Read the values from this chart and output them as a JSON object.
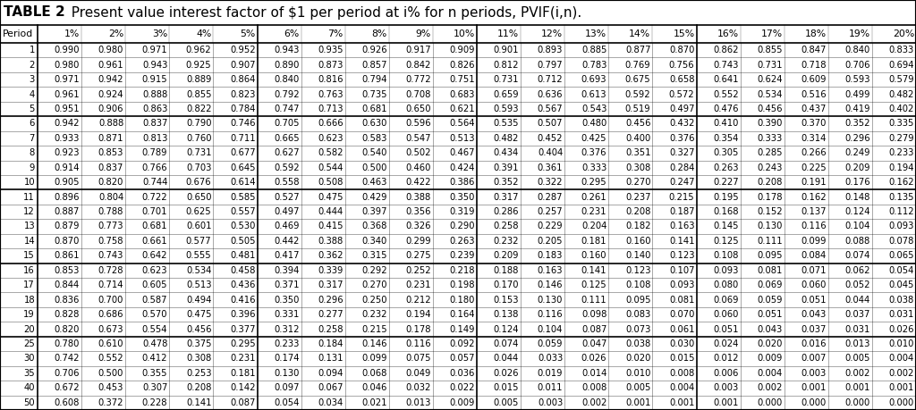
{
  "title_part1": "TABLE 2",
  "title_part2": "  Present value interest factor of $1 per period at i% for n periods, PVIF(i,n).",
  "columns": [
    "Period",
    "1%",
    "2%",
    "3%",
    "4%",
    "5%",
    "6%",
    "7%",
    "8%",
    "9%",
    "10%",
    "11%",
    "12%",
    "13%",
    "14%",
    "15%",
    "16%",
    "17%",
    "18%",
    "19%",
    "20%"
  ],
  "rows": [
    [
      1,
      0.99,
      0.98,
      0.971,
      0.962,
      0.952,
      0.943,
      0.935,
      0.926,
      0.917,
      0.909,
      0.901,
      0.893,
      0.885,
      0.877,
      0.87,
      0.862,
      0.855,
      0.847,
      0.84,
      0.833
    ],
    [
      2,
      0.98,
      0.961,
      0.943,
      0.925,
      0.907,
      0.89,
      0.873,
      0.857,
      0.842,
      0.826,
      0.812,
      0.797,
      0.783,
      0.769,
      0.756,
      0.743,
      0.731,
      0.718,
      0.706,
      0.694
    ],
    [
      3,
      0.971,
      0.942,
      0.915,
      0.889,
      0.864,
      0.84,
      0.816,
      0.794,
      0.772,
      0.751,
      0.731,
      0.712,
      0.693,
      0.675,
      0.658,
      0.641,
      0.624,
      0.609,
      0.593,
      0.579
    ],
    [
      4,
      0.961,
      0.924,
      0.888,
      0.855,
      0.823,
      0.792,
      0.763,
      0.735,
      0.708,
      0.683,
      0.659,
      0.636,
      0.613,
      0.592,
      0.572,
      0.552,
      0.534,
      0.516,
      0.499,
      0.482
    ],
    [
      5,
      0.951,
      0.906,
      0.863,
      0.822,
      0.784,
      0.747,
      0.713,
      0.681,
      0.65,
      0.621,
      0.593,
      0.567,
      0.543,
      0.519,
      0.497,
      0.476,
      0.456,
      0.437,
      0.419,
      0.402
    ],
    [
      6,
      0.942,
      0.888,
      0.837,
      0.79,
      0.746,
      0.705,
      0.666,
      0.63,
      0.596,
      0.564,
      0.535,
      0.507,
      0.48,
      0.456,
      0.432,
      0.41,
      0.39,
      0.37,
      0.352,
      0.335
    ],
    [
      7,
      0.933,
      0.871,
      0.813,
      0.76,
      0.711,
      0.665,
      0.623,
      0.583,
      0.547,
      0.513,
      0.482,
      0.452,
      0.425,
      0.4,
      0.376,
      0.354,
      0.333,
      0.314,
      0.296,
      0.279
    ],
    [
      8,
      0.923,
      0.853,
      0.789,
      0.731,
      0.677,
      0.627,
      0.582,
      0.54,
      0.502,
      0.467,
      0.434,
      0.404,
      0.376,
      0.351,
      0.327,
      0.305,
      0.285,
      0.266,
      0.249,
      0.233
    ],
    [
      9,
      0.914,
      0.837,
      0.766,
      0.703,
      0.645,
      0.592,
      0.544,
      0.5,
      0.46,
      0.424,
      0.391,
      0.361,
      0.333,
      0.308,
      0.284,
      0.263,
      0.243,
      0.225,
      0.209,
      0.194
    ],
    [
      10,
      0.905,
      0.82,
      0.744,
      0.676,
      0.614,
      0.558,
      0.508,
      0.463,
      0.422,
      0.386,
      0.352,
      0.322,
      0.295,
      0.27,
      0.247,
      0.227,
      0.208,
      0.191,
      0.176,
      0.162
    ],
    [
      11,
      0.896,
      0.804,
      0.722,
      0.65,
      0.585,
      0.527,
      0.475,
      0.429,
      0.388,
      0.35,
      0.317,
      0.287,
      0.261,
      0.237,
      0.215,
      0.195,
      0.178,
      0.162,
      0.148,
      0.135
    ],
    [
      12,
      0.887,
      0.788,
      0.701,
      0.625,
      0.557,
      0.497,
      0.444,
      0.397,
      0.356,
      0.319,
      0.286,
      0.257,
      0.231,
      0.208,
      0.187,
      0.168,
      0.152,
      0.137,
      0.124,
      0.112
    ],
    [
      13,
      0.879,
      0.773,
      0.681,
      0.601,
      0.53,
      0.469,
      0.415,
      0.368,
      0.326,
      0.29,
      0.258,
      0.229,
      0.204,
      0.182,
      0.163,
      0.145,
      0.13,
      0.116,
      0.104,
      0.093
    ],
    [
      14,
      0.87,
      0.758,
      0.661,
      0.577,
      0.505,
      0.442,
      0.388,
      0.34,
      0.299,
      0.263,
      0.232,
      0.205,
      0.181,
      0.16,
      0.141,
      0.125,
      0.111,
      0.099,
      0.088,
      0.078
    ],
    [
      15,
      0.861,
      0.743,
      0.642,
      0.555,
      0.481,
      0.417,
      0.362,
      0.315,
      0.275,
      0.239,
      0.209,
      0.183,
      0.16,
      0.14,
      0.123,
      0.108,
      0.095,
      0.084,
      0.074,
      0.065
    ],
    [
      16,
      0.853,
      0.728,
      0.623,
      0.534,
      0.458,
      0.394,
      0.339,
      0.292,
      0.252,
      0.218,
      0.188,
      0.163,
      0.141,
      0.123,
      0.107,
      0.093,
      0.081,
      0.071,
      0.062,
      0.054
    ],
    [
      17,
      0.844,
      0.714,
      0.605,
      0.513,
      0.436,
      0.371,
      0.317,
      0.27,
      0.231,
      0.198,
      0.17,
      0.146,
      0.125,
      0.108,
      0.093,
      0.08,
      0.069,
      0.06,
      0.052,
      0.045
    ],
    [
      18,
      0.836,
      0.7,
      0.587,
      0.494,
      0.416,
      0.35,
      0.296,
      0.25,
      0.212,
      0.18,
      0.153,
      0.13,
      0.111,
      0.095,
      0.081,
      0.069,
      0.059,
      0.051,
      0.044,
      0.038
    ],
    [
      19,
      0.828,
      0.686,
      0.57,
      0.475,
      0.396,
      0.331,
      0.277,
      0.232,
      0.194,
      0.164,
      0.138,
      0.116,
      0.098,
      0.083,
      0.07,
      0.06,
      0.051,
      0.043,
      0.037,
      0.031
    ],
    [
      20,
      0.82,
      0.673,
      0.554,
      0.456,
      0.377,
      0.312,
      0.258,
      0.215,
      0.178,
      0.149,
      0.124,
      0.104,
      0.087,
      0.073,
      0.061,
      0.051,
      0.043,
      0.037,
      0.031,
      0.026
    ],
    [
      25,
      0.78,
      0.61,
      0.478,
      0.375,
      0.295,
      0.233,
      0.184,
      0.146,
      0.116,
      0.092,
      0.074,
      0.059,
      0.047,
      0.038,
      0.03,
      0.024,
      0.02,
      0.016,
      0.013,
      0.01
    ],
    [
      30,
      0.742,
      0.552,
      0.412,
      0.308,
      0.231,
      0.174,
      0.131,
      0.099,
      0.075,
      0.057,
      0.044,
      0.033,
      0.026,
      0.02,
      0.015,
      0.012,
      0.009,
      0.007,
      0.005,
      0.004
    ],
    [
      35,
      0.706,
      0.5,
      0.355,
      0.253,
      0.181,
      0.13,
      0.094,
      0.068,
      0.049,
      0.036,
      0.026,
      0.019,
      0.014,
      0.01,
      0.008,
      0.006,
      0.004,
      0.003,
      0.002,
      0.002
    ],
    [
      40,
      0.672,
      0.453,
      0.307,
      0.208,
      0.142,
      0.097,
      0.067,
      0.046,
      0.032,
      0.022,
      0.015,
      0.011,
      0.008,
      0.005,
      0.004,
      0.003,
      0.002,
      0.001,
      0.001,
      0.001
    ],
    [
      50,
      0.608,
      0.372,
      0.228,
      0.141,
      0.087,
      0.054,
      0.034,
      0.021,
      0.013,
      0.009,
      0.005,
      0.003,
      0.002,
      0.001,
      0.001,
      0.001,
      0.0,
      0.0,
      0.0,
      0.0
    ]
  ],
  "group_separators_after_period": [
    5,
    10,
    15,
    20
  ],
  "thick_col_after": [
    1,
    6,
    11,
    16
  ],
  "bg_color": "#ffffff",
  "text_color": "#000000",
  "title_fontsize": 11.0,
  "header_fontsize": 7.8,
  "cell_fontsize": 7.2,
  "period_col_fontsize": 7.2
}
